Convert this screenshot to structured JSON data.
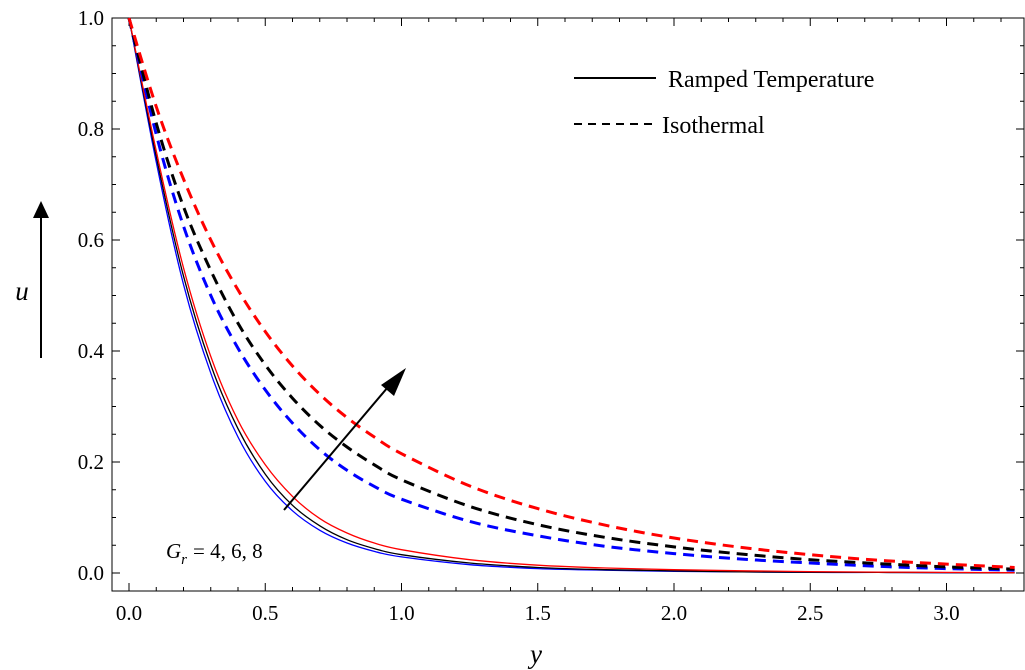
{
  "chart_data": {
    "type": "line",
    "xlabel": "y",
    "ylabel": "u",
    "xlim": [
      0,
      3.25
    ],
    "ylim": [
      0,
      1.0
    ],
    "x_ticks": [
      "0.0",
      "0.5",
      "1.0",
      "1.5",
      "2.0",
      "2.5",
      "3.0"
    ],
    "y_ticks": [
      "0.0",
      "0.2",
      "0.4",
      "0.6",
      "0.8",
      "1.0"
    ],
    "x_tick_values": [
      0,
      0.5,
      1.0,
      1.5,
      2.0,
      2.5,
      3.0
    ],
    "y_tick_values": [
      0,
      0.2,
      0.4,
      0.6,
      0.8,
      1.0
    ],
    "x": [
      0,
      0.1,
      0.2,
      0.3,
      0.4,
      0.5,
      0.6,
      0.7,
      0.8,
      0.9,
      1.0,
      1.25,
      1.5,
      1.75,
      2.0,
      2.25,
      2.5,
      2.75,
      3.0,
      3.25
    ],
    "series": [
      {
        "color": "#0000ff",
        "style": "solid",
        "values": [
          1.0,
          0.74,
          0.52,
          0.36,
          0.245,
          0.165,
          0.112,
          0.077,
          0.054,
          0.039,
          0.029,
          0.015,
          0.008,
          0.005,
          0.003,
          0.002,
          0.001,
          0.001,
          0.0005,
          0.0003
        ]
      },
      {
        "color": "#000000",
        "style": "solid",
        "values": [
          1.0,
          0.75,
          0.535,
          0.375,
          0.26,
          0.178,
          0.122,
          0.085,
          0.06,
          0.044,
          0.033,
          0.018,
          0.01,
          0.006,
          0.004,
          0.002,
          0.0015,
          0.001,
          0.0007,
          0.0004
        ]
      },
      {
        "color": "#ff0000",
        "style": "solid",
        "values": [
          1.0,
          0.76,
          0.55,
          0.39,
          0.275,
          0.195,
          0.138,
          0.098,
          0.072,
          0.054,
          0.042,
          0.024,
          0.014,
          0.009,
          0.006,
          0.004,
          0.0025,
          0.0016,
          0.001,
          0.0006
        ]
      },
      {
        "color": "#0000ff",
        "style": "dashed",
        "values": [
          1.0,
          0.79,
          0.625,
          0.5,
          0.405,
          0.33,
          0.27,
          0.222,
          0.185,
          0.156,
          0.133,
          0.093,
          0.067,
          0.048,
          0.035,
          0.025,
          0.018,
          0.012,
          0.008,
          0.005
        ]
      },
      {
        "color": "#000000",
        "style": "dashed",
        "values": [
          1.0,
          0.81,
          0.66,
          0.545,
          0.45,
          0.375,
          0.315,
          0.266,
          0.227,
          0.195,
          0.168,
          0.12,
          0.087,
          0.064,
          0.047,
          0.034,
          0.024,
          0.017,
          0.011,
          0.007
        ]
      },
      {
        "color": "#ff0000",
        "style": "dashed",
        "values": [
          1.0,
          0.84,
          0.71,
          0.6,
          0.51,
          0.435,
          0.373,
          0.322,
          0.28,
          0.245,
          0.215,
          0.157,
          0.116,
          0.086,
          0.063,
          0.046,
          0.033,
          0.023,
          0.016,
          0.01
        ]
      }
    ],
    "legend": {
      "placement": "top-right",
      "entries": [
        {
          "label": "Ramped Temperature",
          "style": "solid"
        },
        {
          "label": "Isothermal",
          "style": "dashed"
        }
      ]
    },
    "annotation": {
      "text": "= 4, 6, 8",
      "symbol": "G",
      "subscript": "r"
    },
    "grid": false
  }
}
